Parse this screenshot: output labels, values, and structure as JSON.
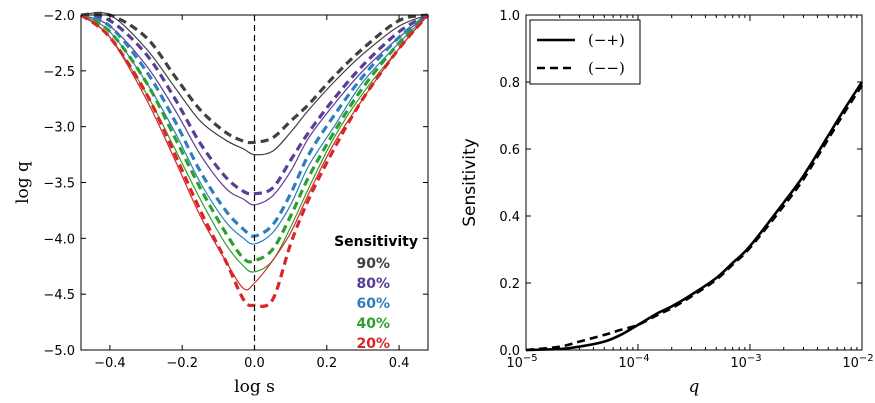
{
  "chart_data": [
    {
      "type": "line",
      "xlabel": "log s",
      "ylabel": "log q",
      "xlim": [
        -0.48,
        0.48
      ],
      "ylim": [
        -5.0,
        -2.0
      ],
      "x_ticks": [
        "-0.4",
        "-0.2",
        "0.0",
        "0.2",
        "0.4"
      ],
      "y_ticks": [
        "-2.0",
        "-2.5",
        "-3.0",
        "-3.5",
        "-4.0",
        "-4.5",
        "-5.0"
      ],
      "legend_title": "Sensitivity",
      "legend_position": "right",
      "vertical_reference_line": 0.0,
      "series": [
        {
          "name": "90%",
          "color": "#404040",
          "x": [
            -0.48,
            -0.4,
            -0.3,
            -0.22,
            -0.15,
            -0.08,
            -0.03,
            0.0,
            0.05,
            0.1,
            0.15,
            0.22,
            0.3,
            0.4,
            0.48
          ],
          "dashed_y": [
            -2.0,
            -2.0,
            -2.2,
            -2.55,
            -2.85,
            -3.05,
            -3.13,
            -3.14,
            -3.1,
            -2.95,
            -2.8,
            -2.55,
            -2.3,
            -2.05,
            -2.0
          ],
          "solid_y": [
            -2.0,
            -2.0,
            -2.3,
            -2.65,
            -2.95,
            -3.12,
            -3.2,
            -3.25,
            -3.22,
            -3.05,
            -2.85,
            -2.6,
            -2.35,
            -2.1,
            -2.0
          ]
        },
        {
          "name": "80%",
          "color": "#5b3c96",
          "x": [
            -0.48,
            -0.4,
            -0.3,
            -0.22,
            -0.15,
            -0.08,
            -0.03,
            0.0,
            0.05,
            0.1,
            0.15,
            0.22,
            0.3,
            0.4,
            0.48
          ],
          "dashed_y": [
            -2.0,
            -2.05,
            -2.35,
            -2.75,
            -3.15,
            -3.45,
            -3.58,
            -3.6,
            -3.55,
            -3.3,
            -3.05,
            -2.75,
            -2.45,
            -2.15,
            -2.0
          ],
          "solid_y": [
            -2.0,
            -2.1,
            -2.45,
            -2.85,
            -3.25,
            -3.55,
            -3.65,
            -3.7,
            -3.62,
            -3.4,
            -3.1,
            -2.8,
            -2.5,
            -2.2,
            -2.0
          ]
        },
        {
          "name": "60%",
          "color": "#2f7ebc",
          "x": [
            -0.48,
            -0.4,
            -0.3,
            -0.22,
            -0.15,
            -0.08,
            -0.03,
            0.0,
            0.05,
            0.1,
            0.15,
            0.22,
            0.3,
            0.4,
            0.48
          ],
          "dashed_y": [
            -2.0,
            -2.1,
            -2.5,
            -2.95,
            -3.4,
            -3.75,
            -3.92,
            -3.98,
            -3.88,
            -3.6,
            -3.25,
            -2.9,
            -2.55,
            -2.2,
            -2.0
          ],
          "solid_y": [
            -2.0,
            -2.15,
            -2.6,
            -3.05,
            -3.5,
            -3.85,
            -4.0,
            -4.05,
            -3.95,
            -3.7,
            -3.35,
            -3.0,
            -2.6,
            -2.25,
            -2.0
          ]
        },
        {
          "name": "40%",
          "color": "#2ca02c",
          "x": [
            -0.48,
            -0.4,
            -0.3,
            -0.22,
            -0.15,
            -0.08,
            -0.03,
            0.0,
            0.05,
            0.1,
            0.15,
            0.22,
            0.3,
            0.4,
            0.48
          ],
          "dashed_y": [
            -2.0,
            -2.15,
            -2.6,
            -3.1,
            -3.55,
            -3.95,
            -4.18,
            -4.2,
            -4.1,
            -3.8,
            -3.45,
            -3.05,
            -2.65,
            -2.25,
            -2.0
          ],
          "solid_y": [
            -2.0,
            -2.2,
            -2.7,
            -3.2,
            -3.65,
            -4.05,
            -4.25,
            -4.3,
            -4.2,
            -3.9,
            -3.55,
            -3.1,
            -2.7,
            -2.3,
            -2.0
          ]
        },
        {
          "name": "20%",
          "color": "#d62728",
          "x": [
            -0.48,
            -0.4,
            -0.3,
            -0.22,
            -0.15,
            -0.08,
            -0.03,
            0.0,
            0.05,
            0.1,
            0.15,
            0.22,
            0.3,
            0.4,
            0.48
          ],
          "dashed_y": [
            -2.0,
            -2.2,
            -2.7,
            -3.25,
            -3.75,
            -4.2,
            -4.55,
            -4.6,
            -4.55,
            -4.05,
            -3.65,
            -3.2,
            -2.75,
            -2.3,
            -2.0
          ],
          "solid_y": [
            -2.0,
            -2.2,
            -2.75,
            -3.3,
            -3.8,
            -4.2,
            -4.45,
            -4.4,
            -4.2,
            -3.95,
            -3.6,
            -3.15,
            -2.75,
            -2.3,
            -2.0
          ]
        }
      ]
    },
    {
      "type": "line",
      "xlabel": "q",
      "ylabel": "Sensitivity",
      "x_scale": "log",
      "xlim": [
        1e-05,
        0.01
      ],
      "ylim": [
        0.0,
        1.0
      ],
      "x_ticks": [
        {
          "base": "10",
          "exp": "-5"
        },
        {
          "base": "10",
          "exp": "-4"
        },
        {
          "base": "10",
          "exp": "-3"
        },
        {
          "base": "10",
          "exp": "-2"
        }
      ],
      "y_ticks": [
        "0.0",
        "0.2",
        "0.4",
        "0.6",
        "0.8",
        "1.0"
      ],
      "legend_position": "top-left",
      "series": [
        {
          "name": "(−+)",
          "style": "solid",
          "x": [
            1e-05,
            2e-05,
            3e-05,
            5e-05,
            7e-05,
            0.0001,
            0.00015,
            0.0002,
            0.0003,
            0.0005,
            0.0007,
            0.001,
            0.002,
            0.003,
            0.005,
            0.007,
            0.01
          ],
          "y": [
            0.0,
            0.003,
            0.01,
            0.025,
            0.045,
            0.075,
            0.11,
            0.13,
            0.165,
            0.215,
            0.26,
            0.31,
            0.44,
            0.52,
            0.64,
            0.72,
            0.8
          ]
        },
        {
          "name": "(−−)",
          "style": "dashed",
          "x": [
            1e-05,
            2e-05,
            3e-05,
            5e-05,
            7e-05,
            0.0001,
            0.00015,
            0.0002,
            0.0003,
            0.0005,
            0.0007,
            0.001,
            0.002,
            0.003,
            0.005,
            0.007,
            0.01
          ],
          "y": [
            0.0,
            0.01,
            0.025,
            0.045,
            0.06,
            0.075,
            0.105,
            0.125,
            0.16,
            0.21,
            0.255,
            0.305,
            0.43,
            0.51,
            0.63,
            0.71,
            0.79
          ]
        }
      ]
    }
  ]
}
